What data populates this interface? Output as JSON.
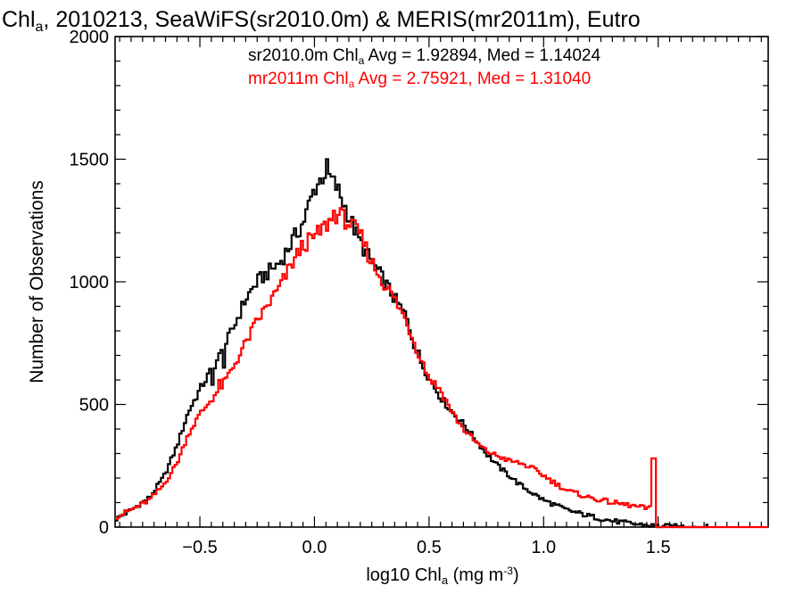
{
  "chart_data": {
    "type": "histogram-step",
    "title_parts": {
      "pre": "Chl",
      "sub": "a",
      "post": ", 2010213, SeaWiFS(sr2010.0m) & MERIS(mr2011m), Eutro"
    },
    "xlabel_parts": {
      "pre": "log10 Chl",
      "sub": "a",
      "mid": " (mg m",
      "sup": "-3",
      "post": ")"
    },
    "ylabel": "Number of Observations",
    "xlim": [
      -0.87,
      1.98
    ],
    "ylim": [
      0,
      2000
    ],
    "x_ticks": [
      -0.5,
      0.0,
      0.5,
      1.0,
      1.5
    ],
    "x_tick_labels": [
      "−0.5",
      "0.0",
      "0.5",
      "1.0",
      "1.5"
    ],
    "y_ticks": [
      0,
      500,
      1000,
      1500,
      2000
    ],
    "y_tick_labels": [
      "0",
      "500",
      "1000",
      "1500",
      "2000"
    ],
    "bin_width": 0.01,
    "series": [
      {
        "name": "sr2010.0m",
        "color": "#000000",
        "legend_parts": {
          "pre": "sr2010.0m Chl",
          "sub": "a",
          "post": " Avg = 1.92894, Med = 1.14024"
        },
        "end_x": 1.72,
        "curve": [
          [
            -0.87,
            30
          ],
          [
            -0.8,
            70
          ],
          [
            -0.72,
            120
          ],
          [
            -0.66,
            200
          ],
          [
            -0.6,
            330
          ],
          [
            -0.55,
            470
          ],
          [
            -0.5,
            560
          ],
          [
            -0.45,
            640
          ],
          [
            -0.4,
            720
          ],
          [
            -0.35,
            820
          ],
          [
            -0.3,
            930
          ],
          [
            -0.25,
            1000
          ],
          [
            -0.2,
            1040
          ],
          [
            -0.15,
            1080
          ],
          [
            -0.1,
            1160
          ],
          [
            -0.05,
            1240
          ],
          [
            0.0,
            1380
          ],
          [
            0.05,
            1450
          ],
          [
            0.1,
            1380
          ],
          [
            0.15,
            1270
          ],
          [
            0.2,
            1160
          ],
          [
            0.25,
            1080
          ],
          [
            0.3,
            1010
          ],
          [
            0.35,
            930
          ],
          [
            0.4,
            860
          ],
          [
            0.45,
            700
          ],
          [
            0.5,
            610
          ],
          [
            0.55,
            530
          ],
          [
            0.6,
            470
          ],
          [
            0.65,
            420
          ],
          [
            0.7,
            360
          ],
          [
            0.75,
            300
          ],
          [
            0.8,
            250
          ],
          [
            0.85,
            210
          ],
          [
            0.9,
            170
          ],
          [
            0.95,
            140
          ],
          [
            1.0,
            110
          ],
          [
            1.1,
            70
          ],
          [
            1.2,
            45
          ],
          [
            1.3,
            25
          ],
          [
            1.4,
            12
          ],
          [
            1.5,
            4
          ],
          [
            1.6,
            2
          ],
          [
            1.72,
            0
          ]
        ],
        "spikes": [
          [
            0.05,
            1500
          ],
          [
            0.06,
            1440
          ],
          [
            -0.45,
            580
          ],
          [
            -0.4,
            650
          ],
          [
            0.45,
            720
          ],
          [
            0.5,
            600
          ]
        ]
      },
      {
        "name": "mr2011m",
        "color": "#ff0000",
        "legend_parts": {
          "pre": "mr2011m Chl",
          "sub": "a",
          "post": " Avg = 2.75921, Med = 1.31040"
        },
        "end_x": 1.98,
        "curve": [
          [
            -0.87,
            40
          ],
          [
            -0.8,
            70
          ],
          [
            -0.72,
            110
          ],
          [
            -0.66,
            170
          ],
          [
            -0.6,
            260
          ],
          [
            -0.55,
            380
          ],
          [
            -0.5,
            460
          ],
          [
            -0.45,
            520
          ],
          [
            -0.4,
            580
          ],
          [
            -0.35,
            660
          ],
          [
            -0.3,
            750
          ],
          [
            -0.25,
            840
          ],
          [
            -0.2,
            910
          ],
          [
            -0.15,
            980
          ],
          [
            -0.1,
            1070
          ],
          [
            -0.05,
            1150
          ],
          [
            0.0,
            1180
          ],
          [
            0.05,
            1230
          ],
          [
            0.1,
            1280
          ],
          [
            0.15,
            1240
          ],
          [
            0.2,
            1190
          ],
          [
            0.25,
            1080
          ],
          [
            0.3,
            1000
          ],
          [
            0.35,
            930
          ],
          [
            0.4,
            840
          ],
          [
            0.45,
            720
          ],
          [
            0.5,
            610
          ],
          [
            0.55,
            560
          ],
          [
            0.6,
            470
          ],
          [
            0.65,
            400
          ],
          [
            0.7,
            350
          ],
          [
            0.75,
            310
          ],
          [
            0.8,
            290
          ],
          [
            0.85,
            270
          ],
          [
            0.9,
            260
          ],
          [
            0.95,
            240
          ],
          [
            1.0,
            210
          ],
          [
            1.05,
            180
          ],
          [
            1.1,
            150
          ],
          [
            1.2,
            120
          ],
          [
            1.3,
            100
          ],
          [
            1.4,
            85
          ],
          [
            1.46,
            75
          ],
          [
            1.47,
            80
          ],
          [
            1.48,
            0
          ],
          [
            1.98,
            0
          ]
        ],
        "spikes": [
          [
            1.47,
            280
          ],
          [
            1.48,
            280
          ],
          [
            0.08,
            1290
          ],
          [
            -0.42,
            600
          ]
        ]
      }
    ]
  }
}
